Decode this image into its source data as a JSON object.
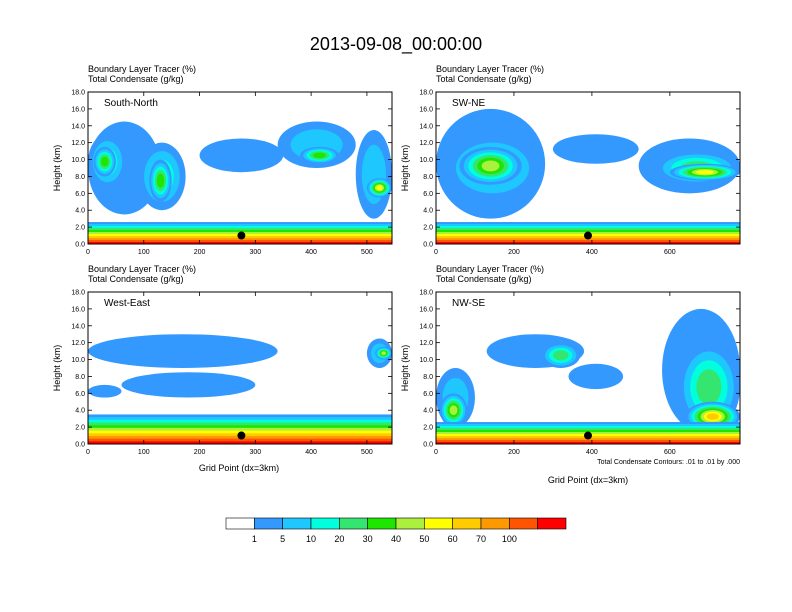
{
  "page_title": "2013-09-08_00:00:00",
  "chart_data": {
    "type": "heatmap",
    "title": "2013-09-08_00:00:00",
    "field_label": "Boundary Layer Tracer",
    "field_units": "(%)",
    "contour_label": "Total Condensate",
    "contour_units": "(g/kg)",
    "ylabel": "Height (km)",
    "xlabel": "Grid Point (dx=3km)",
    "ylim": [
      0,
      18
    ],
    "y_ticks": [
      "0.0",
      "2.0",
      "4.0",
      "6.0",
      "8.0",
      "10.0",
      "12.0",
      "14.0",
      "16.0",
      "18.0"
    ],
    "footnote": "Total Condensate Contours: .01 to .01 by .000",
    "colorbar": {
      "levels": [
        "1",
        "5",
        "10",
        "20",
        "30",
        "40",
        "50",
        "60",
        "70",
        "100"
      ],
      "colors": [
        "#ffffff",
        "#3399ff",
        "#1ec8ff",
        "#00ffdc",
        "#34e670",
        "#1ee600",
        "#aaf03c",
        "#ffff00",
        "#ffcc00",
        "#ff9900",
        "#ff5500",
        "#ff0000"
      ]
    },
    "panels": [
      {
        "name": "South-North",
        "xlim": [
          0,
          545
        ],
        "x_ticks": [
          0,
          100,
          200,
          300,
          400,
          500
        ],
        "x_tick_labels": [
          "0",
          "100",
          "200",
          "300",
          "400",
          "500"
        ],
        "marker_x": 275,
        "marker_height_km": 1.0,
        "surface_layer_top_km": 2.6,
        "blobs": [
          {
            "x": [
              0,
              130
            ],
            "z": [
              3.5,
              14.5
            ],
            "level": 1
          },
          {
            "x": [
              0,
              70
            ],
            "z": [
              6.5,
              13.0
            ],
            "level": 3
          },
          {
            "x": [
              10,
              50
            ],
            "z": [
              8.0,
              11.5
            ],
            "level": 5
          },
          {
            "x": [
              90,
              175
            ],
            "z": [
              4.0,
              12.0
            ],
            "level": 3
          },
          {
            "x": [
              110,
              150
            ],
            "z": [
              5.0,
              10.0
            ],
            "level": 5
          },
          {
            "x": [
              200,
              350
            ],
            "z": [
              8.5,
              12.5
            ],
            "level": 1
          },
          {
            "x": [
              340,
              480
            ],
            "z": [
              9.0,
              14.5
            ],
            "level": 2
          },
          {
            "x": [
              380,
              450
            ],
            "z": [
              9.5,
              11.5
            ],
            "level": 5
          },
          {
            "x": [
              480,
              545
            ],
            "z": [
              3.0,
              13.5
            ],
            "level": 2
          },
          {
            "x": [
              500,
              545
            ],
            "z": [
              5.5,
              7.8
            ],
            "level": 7
          }
        ]
      },
      {
        "name": "SW-NE",
        "xlim": [
          0,
          780
        ],
        "x_ticks": [
          0,
          200,
          400,
          600
        ],
        "x_tick_labels": [
          "0",
          "200",
          "400",
          "600"
        ],
        "marker_x": 390,
        "marker_height_km": 1.0,
        "surface_layer_top_km": 2.6,
        "blobs": [
          {
            "x": [
              0,
              280
            ],
            "z": [
              3.0,
              16.0
            ],
            "level": 1
          },
          {
            "x": [
              20,
              270
            ],
            "z": [
              5.0,
              13.0
            ],
            "level": 3
          },
          {
            "x": [
              60,
              220
            ],
            "z": [
              7.0,
              11.5
            ],
            "level": 6
          },
          {
            "x": [
              300,
              520
            ],
            "z": [
              9.5,
              13.0
            ],
            "level": 1
          },
          {
            "x": [
              520,
              780
            ],
            "z": [
              6.0,
              12.5
            ],
            "level": 1
          },
          {
            "x": [
              560,
              780
            ],
            "z": [
              7.0,
              11.0
            ],
            "level": 4
          },
          {
            "x": [
              600,
              780
            ],
            "z": [
              7.5,
              9.5
            ],
            "level": 7
          }
        ]
      },
      {
        "name": "West-East",
        "xlim": [
          0,
          545
        ],
        "x_ticks": [
          0,
          100,
          200,
          300,
          400,
          500
        ],
        "x_tick_labels": [
          "0",
          "100",
          "200",
          "300",
          "400",
          "500"
        ],
        "marker_x": 275,
        "marker_height_km": 1.0,
        "surface_layer_top_km": 3.5,
        "blobs": [
          {
            "x": [
              0,
              340
            ],
            "z": [
              9.0,
              13.0
            ],
            "level": 1
          },
          {
            "x": [
              60,
              300
            ],
            "z": [
              5.5,
              8.5
            ],
            "level": 1
          },
          {
            "x": [
              0,
              60
            ],
            "z": [
              5.5,
              7.0
            ],
            "level": 1
          },
          {
            "x": [
              500,
              545
            ],
            "z": [
              9.0,
              12.5
            ],
            "level": 2
          },
          {
            "x": [
              515,
              545
            ],
            "z": [
              10.0,
              11.5
            ],
            "level": 6
          }
        ]
      },
      {
        "name": "NW-SE",
        "xlim": [
          0,
          780
        ],
        "x_ticks": [
          0,
          200,
          400,
          600
        ],
        "x_tick_labels": [
          "0",
          "200",
          "400",
          "600"
        ],
        "marker_x": 390,
        "marker_height_km": 1.0,
        "surface_layer_top_km": 2.6,
        "blobs": [
          {
            "x": [
              0,
              100
            ],
            "z": [
              2.0,
              9.0
            ],
            "level": 2
          },
          {
            "x": [
              10,
              80
            ],
            "z": [
              2.0,
              6.0
            ],
            "level": 6
          },
          {
            "x": [
              130,
              380
            ],
            "z": [
              9.0,
              13.0
            ],
            "level": 1
          },
          {
            "x": [
              270,
              370
            ],
            "z": [
              9.0,
              12.0
            ],
            "level": 4
          },
          {
            "x": [
              340,
              480
            ],
            "z": [
              6.5,
              9.5
            ],
            "level": 1
          },
          {
            "x": [
              580,
              780
            ],
            "z": [
              1.5,
              16.0
            ],
            "level": 1
          },
          {
            "x": [
              620,
              780
            ],
            "z": [
              1.5,
              12.0
            ],
            "level": 4
          },
          {
            "x": [
              640,
              780
            ],
            "z": [
              1.5,
              5.0
            ],
            "level": 8
          }
        ]
      }
    ]
  }
}
